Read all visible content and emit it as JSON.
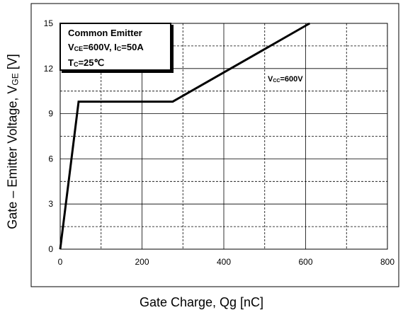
{
  "chart_data": {
    "type": "line",
    "xlabel": "Gate Charge, Qg  [nC]",
    "ylabel_prefix": "Gate – Emitter Voltage, V",
    "ylabel_sub": "GE",
    "ylabel_suffix": " [V]",
    "xlim": [
      0,
      800
    ],
    "ylim": [
      0,
      15
    ],
    "xticks": [
      0,
      200,
      400,
      600,
      800
    ],
    "yticks": [
      0,
      3,
      6,
      9,
      12,
      15
    ],
    "grid": true,
    "series": [
      {
        "name": "VCC=600V",
        "x": [
          0,
          45,
          275,
          610
        ],
        "y": [
          0,
          9.8,
          9.8,
          15
        ]
      }
    ],
    "legend": {
      "line1": "Common Emitter",
      "line2_v": "V",
      "line2_sub": "CE",
      "line2_rest": "=600V, I",
      "line2_sub2": "C",
      "line2_end": "=50A",
      "line3_t": "T",
      "line3_sub": "C",
      "line3_rest": "=25℃"
    },
    "annotation": {
      "v": "V",
      "sub": "CC",
      "rest": "=600V"
    }
  }
}
